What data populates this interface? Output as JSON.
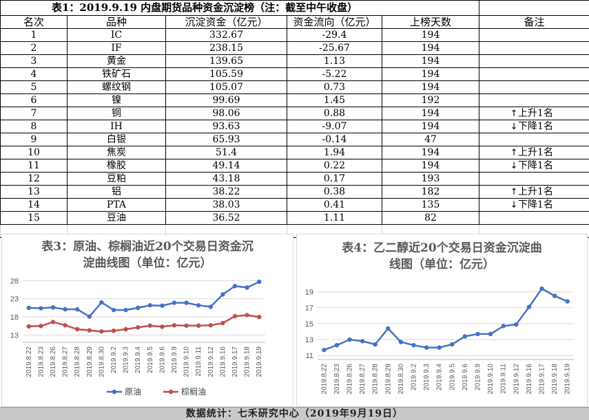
{
  "table": {
    "title": "表1：2019.9.19 内盘期货品种资金沉淀榜（注：截至中午收盘）",
    "headers": [
      "名次",
      "品种",
      "沉淀资金（亿元）",
      "资金流向（亿元）",
      "上榜天数",
      "备注"
    ],
    "rows": [
      {
        "rank": "1",
        "name": "IC",
        "fund": "332.67",
        "flow": "-29.4",
        "days": "194",
        "arrow": "",
        "remark": ""
      },
      {
        "rank": "2",
        "name": "IF",
        "fund": "238.15",
        "flow": "-25.67",
        "days": "194",
        "arrow": "",
        "remark": ""
      },
      {
        "rank": "3",
        "name": "黄金",
        "fund": "139.65",
        "flow": "1.13",
        "days": "194",
        "arrow": "",
        "remark": ""
      },
      {
        "rank": "4",
        "name": "铁矿石",
        "fund": "105.59",
        "flow": "-5.22",
        "days": "194",
        "arrow": "",
        "remark": ""
      },
      {
        "rank": "5",
        "name": "螺纹钢",
        "fund": "105.07",
        "flow": "0.73",
        "days": "194",
        "arrow": "",
        "remark": ""
      },
      {
        "rank": "6",
        "name": "镍",
        "fund": "99.69",
        "flow": "1.45",
        "days": "192",
        "arrow": "",
        "remark": ""
      },
      {
        "rank": "7",
        "name": "铜",
        "fund": "98.06",
        "flow": "0.88",
        "days": "194",
        "arrow": "↑",
        "remark": "上升1名"
      },
      {
        "rank": "8",
        "name": "IH",
        "fund": "93.63",
        "flow": "-9.07",
        "days": "194",
        "arrow": "↓",
        "remark": "下降1名"
      },
      {
        "rank": "9",
        "name": "白银",
        "fund": "65.93",
        "flow": "-0.14",
        "days": "47",
        "arrow": "",
        "remark": ""
      },
      {
        "rank": "10",
        "name": "焦炭",
        "fund": "51.4",
        "flow": "1.94",
        "days": "194",
        "arrow": "↑",
        "remark": "上升1名"
      },
      {
        "rank": "11",
        "name": "橡胶",
        "fund": "49.14",
        "flow": "0.22",
        "days": "194",
        "arrow": "↓",
        "remark": "下降1名"
      },
      {
        "rank": "12",
        "name": "豆粕",
        "fund": "43.18",
        "flow": "0.17",
        "days": "193",
        "arrow": "",
        "remark": ""
      },
      {
        "rank": "13",
        "name": "铝",
        "fund": "38.22",
        "flow": "0.38",
        "days": "182",
        "arrow": "↑",
        "remark": "上升1名"
      },
      {
        "rank": "14",
        "name": "PTA",
        "fund": "38.03",
        "flow": "0.41",
        "days": "135",
        "arrow": "↓",
        "remark": "下降1名"
      },
      {
        "rank": "15",
        "name": "豆油",
        "fund": "36.52",
        "flow": "1.11",
        "days": "82",
        "arrow": "",
        "remark": ""
      }
    ]
  },
  "chart_data": [
    {
      "type": "line",
      "title_line1": "表3：原油、棕榈油近20个交易日资金沉",
      "title_line2": "淀曲线图（单位：亿元）",
      "xlabel": "",
      "ylabel": "",
      "x": [
        "2019.8.22",
        "2019.8.23",
        "2019.8.26",
        "2019.8.27",
        "2019.8.28",
        "2019.8.29",
        "2019.8.30",
        "2019.9.2",
        "2019.9.3",
        "2019.9.4",
        "2019.9.5",
        "2019.9.6",
        "2019.9.9",
        "2019.9.10",
        "2019.9.11",
        "2019.9.12",
        "2019.9.16",
        "2019.9.17",
        "2019.9.18",
        "2019.9.19"
      ],
      "yticks": [
        13,
        18,
        23,
        28
      ],
      "ylim": [
        11,
        29
      ],
      "grid": true,
      "legend": "bottom",
      "series": [
        {
          "name": "原油",
          "color": "#4472c4",
          "values": [
            20.5,
            20.4,
            20.6,
            20.1,
            20.1,
            18.1,
            22.0,
            19.9,
            19.9,
            20.5,
            21.2,
            21.1,
            21.9,
            21.9,
            21.2,
            20.8,
            24.2,
            26.5,
            26.1,
            27.7
          ]
        },
        {
          "name": "棕榈油",
          "color": "#c0504d",
          "values": [
            15.4,
            15.5,
            16.6,
            15.7,
            14.6,
            14.3,
            14.0,
            14.2,
            14.6,
            15.1,
            15.6,
            15.3,
            15.7,
            15.6,
            15.6,
            15.7,
            16.3,
            18.2,
            18.5,
            18.0
          ]
        }
      ]
    },
    {
      "type": "line",
      "title_line1": "表4：乙二醇近20个交易日资金沉淀曲",
      "title_line2": "线图（单位：亿元）",
      "xlabel": "",
      "ylabel": "",
      "x": [
        "2019.8.22",
        "2019.8.23",
        "2019.8.26",
        "2019.8.27",
        "2019.8.28",
        "2019.8.29",
        "2019.8.30",
        "2019.9.2",
        "2019.9.3",
        "2019.9.4",
        "2019.9.5",
        "2019.9.6",
        "2019.9.9",
        "2019.9.10",
        "2019.9.11",
        "2019.9.12",
        "2019.9.16",
        "2019.9.17",
        "2019.9.18",
        "2019.9.19"
      ],
      "yticks": [
        11,
        13,
        15,
        17,
        19
      ],
      "ylim": [
        10.5,
        20
      ],
      "grid": true,
      "legend": "none",
      "series": [
        {
          "name": "",
          "color": "#4472c4",
          "values": [
            11.7,
            12.3,
            13.0,
            12.8,
            12.4,
            14.4,
            12.7,
            12.3,
            12.0,
            12.0,
            12.4,
            13.4,
            13.7,
            13.7,
            14.7,
            14.9,
            17.1,
            19.4,
            18.5,
            17.8
          ]
        }
      ]
    }
  ],
  "footer": {
    "text": "数据统计：七禾研究中心（2019年9月19日）"
  }
}
